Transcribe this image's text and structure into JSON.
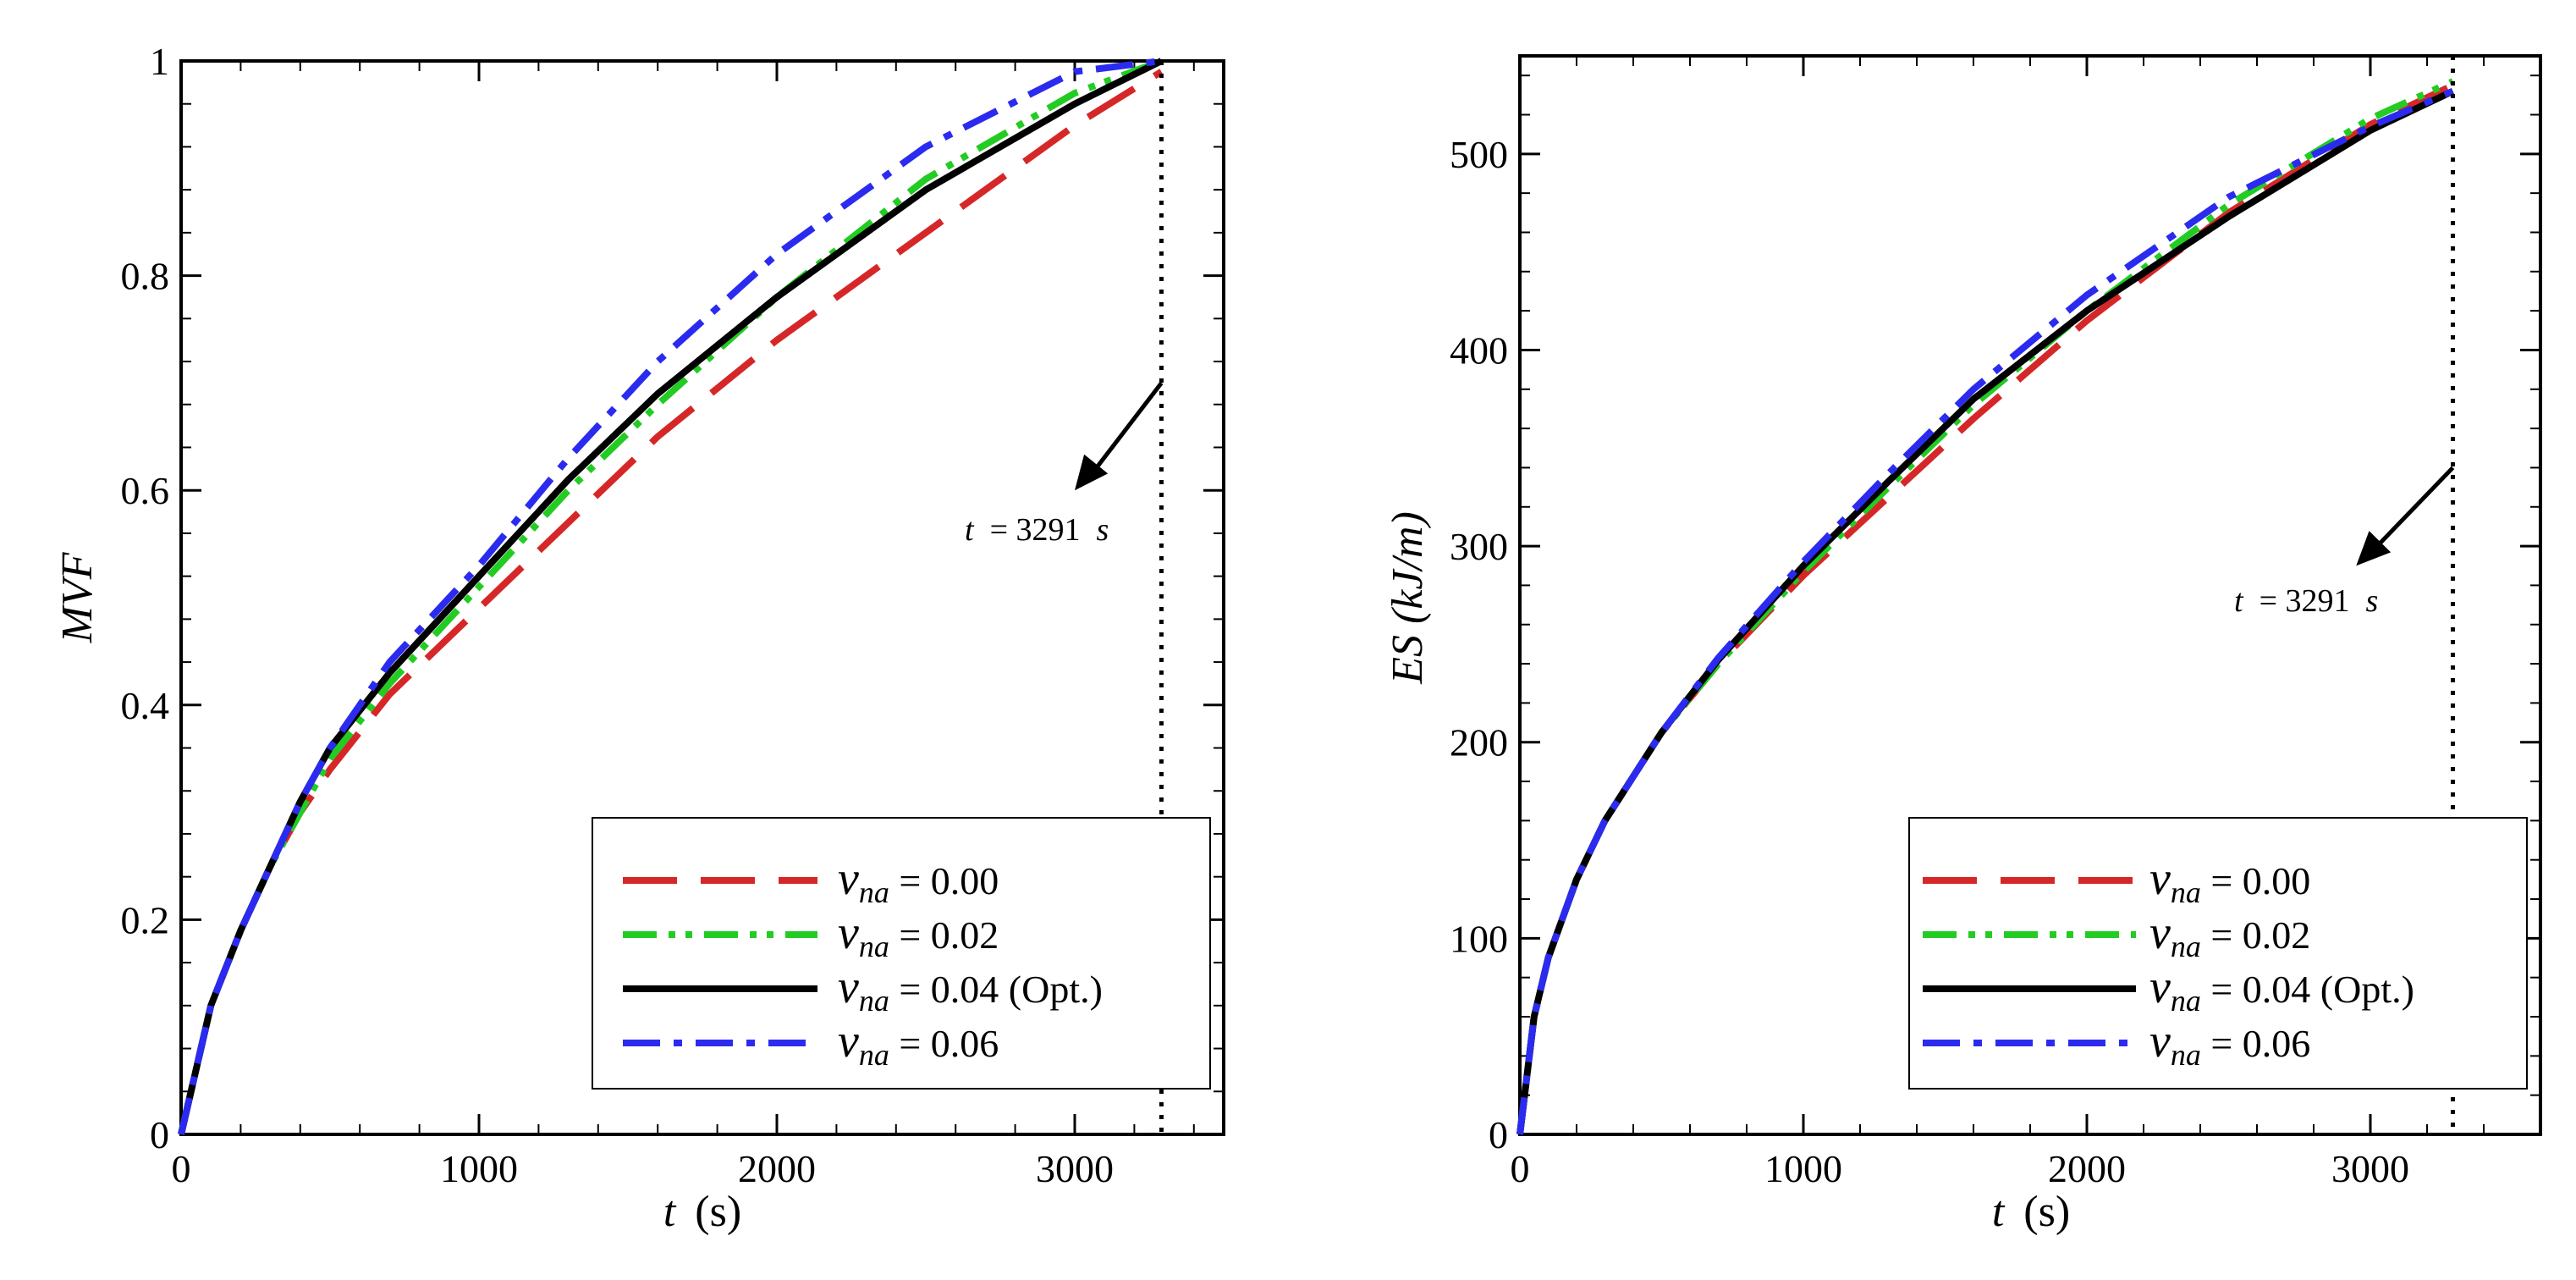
{
  "chart_data": [
    {
      "type": "line",
      "xlabel": {
        "var": "t",
        "unit": "(s)"
      },
      "ylabel": "MVF",
      "xlim": [
        0,
        3500
      ],
      "ylim": [
        0,
        1.0
      ],
      "x_ticks": [
        0,
        1000,
        2000,
        3000
      ],
      "x_tick_labels": [
        "0",
        "1000",
        "2000",
        "3000"
      ],
      "y_ticks": [
        0,
        0.2,
        0.4,
        0.6,
        0.8,
        1.0
      ],
      "y_tick_labels": [
        "0",
        "0.2",
        "0.4",
        "0.6",
        "0.8",
        "1"
      ],
      "y_minor_step": 0.04,
      "x_minor_step": 200,
      "legend_position": "bottom-right",
      "annotation": {
        "text_prefix": "t",
        "text_value": " = 3291 ",
        "text_unit": "s",
        "x": 3291,
        "arrow_from": [
          3291,
          0.7
        ],
        "arrow_to": [
          3000,
          0.6
        ]
      },
      "vertical_marker_x": 3291,
      "series": [
        {
          "name": "ν_na = 0.00",
          "legend_sym": "ν",
          "legend_sub": "na",
          "legend_val": " = 0.00",
          "color": "#d62728",
          "style": "dash",
          "x": [
            0,
            100,
            200,
            300,
            400,
            500,
            700,
            1000,
            1300,
            1600,
            2000,
            2500,
            3000,
            3291
          ],
          "y": [
            0,
            0.12,
            0.19,
            0.25,
            0.3,
            0.34,
            0.41,
            0.49,
            0.57,
            0.65,
            0.74,
            0.84,
            0.94,
            0.99
          ]
        },
        {
          "name": "ν_na = 0.02",
          "legend_sym": "ν",
          "legend_sub": "na",
          "legend_val": " = 0.02",
          "color": "#22cc22",
          "style": "dashdotdot",
          "x": [
            0,
            100,
            200,
            300,
            400,
            500,
            700,
            1000,
            1300,
            1600,
            2000,
            2500,
            3000,
            3291
          ],
          "y": [
            0,
            0.12,
            0.19,
            0.25,
            0.3,
            0.35,
            0.42,
            0.51,
            0.6,
            0.68,
            0.78,
            0.89,
            0.97,
            1.0
          ]
        },
        {
          "name": "ν_na = 0.04 (Opt.)",
          "legend_sym": "ν",
          "legend_sub": "na",
          "legend_val": " = 0.04 (Opt.)",
          "color": "#000000",
          "style": "solid",
          "x": [
            0,
            100,
            200,
            300,
            400,
            500,
            700,
            1000,
            1300,
            1600,
            2000,
            2500,
            3000,
            3291
          ],
          "y": [
            0,
            0.12,
            0.19,
            0.25,
            0.31,
            0.36,
            0.43,
            0.52,
            0.61,
            0.69,
            0.78,
            0.88,
            0.96,
            1.0
          ]
        },
        {
          "name": "ν_na = 0.06",
          "legend_sym": "ν",
          "legend_sub": "na",
          "legend_val": " = 0.06",
          "color": "#2b2bf0",
          "style": "dashdot",
          "x": [
            0,
            100,
            200,
            300,
            400,
            500,
            700,
            1000,
            1300,
            1600,
            2000,
            2500,
            3000,
            3291
          ],
          "y": [
            0,
            0.12,
            0.19,
            0.25,
            0.31,
            0.36,
            0.44,
            0.53,
            0.63,
            0.72,
            0.82,
            0.92,
            0.99,
            1.0
          ]
        }
      ]
    },
    {
      "type": "line",
      "xlabel": {
        "var": "t",
        "unit": "(s)"
      },
      "ylabel": "ES (kJ/m)",
      "xlim": [
        0,
        3600
      ],
      "ylim": [
        0,
        550
      ],
      "x_ticks": [
        0,
        1000,
        2000,
        3000
      ],
      "x_tick_labels": [
        "0",
        "1000",
        "2000",
        "3000"
      ],
      "y_ticks": [
        0,
        100,
        200,
        300,
        400,
        500
      ],
      "y_tick_labels": [
        "0",
        "100",
        "200",
        "300",
        "400",
        "500"
      ],
      "y_minor_step": 20,
      "x_minor_step": 200,
      "legend_position": "bottom-right",
      "annotation": {
        "text_prefix": "t",
        "text_value": " = 3291 ",
        "text_unit": "s",
        "x": 3291,
        "arrow_from": [
          3291,
          340
        ],
        "arrow_to": [
          2950,
          290
        ]
      },
      "vertical_marker_x": 3291,
      "series": [
        {
          "name": "ν_na = 0.00",
          "legend_sym": "ν",
          "legend_sub": "na",
          "legend_val": " = 0.00",
          "color": "#d62728",
          "style": "dash",
          "x": [
            0,
            50,
            100,
            200,
            300,
            500,
            700,
            1000,
            1300,
            1600,
            2000,
            2500,
            3000,
            3291
          ],
          "y": [
            0,
            60,
            90,
            130,
            160,
            205,
            240,
            285,
            325,
            365,
            415,
            470,
            515,
            535
          ]
        },
        {
          "name": "ν_na = 0.02",
          "legend_sym": "ν",
          "legend_sub": "na",
          "legend_val": " = 0.02",
          "color": "#22cc22",
          "style": "dashdotdot",
          "x": [
            0,
            50,
            100,
            200,
            300,
            500,
            700,
            1000,
            1300,
            1600,
            2000,
            2500,
            3000,
            3291
          ],
          "y": [
            0,
            60,
            90,
            130,
            160,
            205,
            240,
            287,
            330,
            372,
            420,
            474,
            518,
            537
          ]
        },
        {
          "name": "ν_na = 0.04 (Opt.)",
          "legend_sym": "ν",
          "legend_sub": "na",
          "legend_val": " = 0.04 (Opt.)",
          "color": "#000000",
          "style": "solid",
          "x": [
            0,
            50,
            100,
            200,
            300,
            500,
            700,
            1000,
            1300,
            1600,
            2000,
            2500,
            3000,
            3291
          ],
          "y": [
            0,
            60,
            90,
            130,
            160,
            205,
            242,
            290,
            333,
            375,
            420,
            468,
            512,
            532
          ]
        },
        {
          "name": "ν_na = 0.06",
          "legend_sym": "ν",
          "legend_sub": "na",
          "legend_val": " = 0.06",
          "color": "#2b2bf0",
          "style": "dashdot",
          "x": [
            0,
            50,
            100,
            200,
            300,
            500,
            700,
            1000,
            1300,
            1600,
            2000,
            2500,
            3000,
            3291
          ],
          "y": [
            0,
            60,
            90,
            130,
            160,
            205,
            243,
            292,
            337,
            380,
            428,
            478,
            514,
            532
          ]
        }
      ]
    }
  ]
}
